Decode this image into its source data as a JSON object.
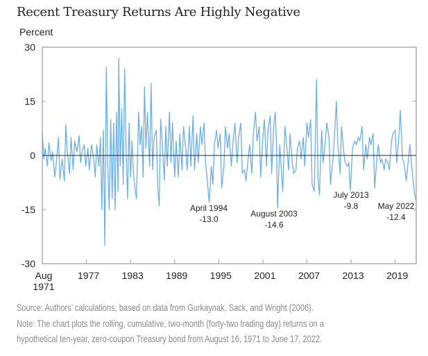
{
  "chart_data": {
    "type": "line",
    "title": "Recent Treasury Returns Are Highly Negative",
    "ylabel": "Percent",
    "xlabel": "",
    "ylim": [
      -30,
      30
    ],
    "yticks": [
      30,
      15,
      0,
      -15,
      -30
    ],
    "xlim": [
      1971.6,
      2022.46
    ],
    "xticks": [
      {
        "x": 1971.6,
        "label": [
          "Aug",
          "1971"
        ]
      },
      {
        "x": 1977.6,
        "label": [
          "1977"
        ]
      },
      {
        "x": 1983.6,
        "label": [
          "1983"
        ]
      },
      {
        "x": 1989.6,
        "label": [
          "1989"
        ]
      },
      {
        "x": 1995.6,
        "label": [
          "1995"
        ]
      },
      {
        "x": 2001.6,
        "label": [
          "2001"
        ]
      },
      {
        "x": 2007.6,
        "label": [
          "2007"
        ]
      },
      {
        "x": 2013.6,
        "label": [
          "2013"
        ]
      },
      {
        "x": 2019.6,
        "label": [
          "2019"
        ]
      }
    ],
    "grid": false,
    "zero_line": true,
    "series_color": "#6aafe6",
    "points": [
      [
        1971.6,
        6.5
      ],
      [
        1971.8,
        -1
      ],
      [
        1972.0,
        2
      ],
      [
        1972.3,
        -3
      ],
      [
        1972.5,
        3.5
      ],
      [
        1972.8,
        -1.5
      ],
      [
        1973.0,
        1
      ],
      [
        1973.3,
        -6
      ],
      [
        1973.5,
        -2
      ],
      [
        1973.8,
        5
      ],
      [
        1974.0,
        -6.5
      ],
      [
        1974.3,
        -1
      ],
      [
        1974.6,
        -7
      ],
      [
        1974.8,
        8.5
      ],
      [
        1975.0,
        1
      ],
      [
        1975.3,
        -5
      ],
      [
        1975.5,
        5
      ],
      [
        1975.8,
        -4
      ],
      [
        1976.0,
        4
      ],
      [
        1976.3,
        1
      ],
      [
        1976.6,
        5.5
      ],
      [
        1976.8,
        -2
      ],
      [
        1977.0,
        1
      ],
      [
        1977.3,
        3
      ],
      [
        1977.5,
        -3
      ],
      [
        1977.8,
        2
      ],
      [
        1978.0,
        -4
      ],
      [
        1978.3,
        3
      ],
      [
        1978.6,
        -1
      ],
      [
        1978.8,
        -6
      ],
      [
        1979.0,
        3
      ],
      [
        1979.3,
        -3
      ],
      [
        1979.5,
        5
      ],
      [
        1979.7,
        -15
      ],
      [
        1979.9,
        7
      ],
      [
        1980.1,
        -25
      ],
      [
        1980.3,
        24.5
      ],
      [
        1980.5,
        -2
      ],
      [
        1980.7,
        -15
      ],
      [
        1980.9,
        10
      ],
      [
        1981.1,
        -12
      ],
      [
        1981.3,
        9
      ],
      [
        1981.5,
        -15
      ],
      [
        1981.7,
        12
      ],
      [
        1981.9,
        -10
      ],
      [
        1982.0,
        27
      ],
      [
        1982.2,
        -3
      ],
      [
        1982.4,
        13
      ],
      [
        1982.6,
        -8
      ],
      [
        1982.8,
        24
      ],
      [
        1983.0,
        2
      ],
      [
        1983.2,
        -12
      ],
      [
        1983.4,
        9
      ],
      [
        1983.6,
        -6
      ],
      [
        1983.8,
        4
      ],
      [
        1984.0,
        -5
      ],
      [
        1984.2,
        -9
      ],
      [
        1984.4,
        -12
      ],
      [
        1984.7,
        12
      ],
      [
        1984.9,
        3
      ],
      [
        1985.1,
        8
      ],
      [
        1985.3,
        -6
      ],
      [
        1985.5,
        19
      ],
      [
        1985.7,
        2
      ],
      [
        1985.9,
        12
      ],
      [
        1986.2,
        -3
      ],
      [
        1986.4,
        20
      ],
      [
        1986.6,
        -4
      ],
      [
        1986.8,
        5
      ],
      [
        1987.1,
        7
      ],
      [
        1987.3,
        -9
      ],
      [
        1987.5,
        -14
      ],
      [
        1987.7,
        10
      ],
      [
        1987.9,
        4
      ],
      [
        1988.2,
        -7
      ],
      [
        1988.4,
        8
      ],
      [
        1988.6,
        -3
      ],
      [
        1988.9,
        12
      ],
      [
        1989.1,
        -2
      ],
      [
        1989.3,
        9
      ],
      [
        1989.6,
        -6
      ],
      [
        1989.8,
        4
      ],
      [
        1990.1,
        -6
      ],
      [
        1990.3,
        6
      ],
      [
        1990.6,
        -4
      ],
      [
        1990.8,
        8
      ],
      [
        1991.1,
        2
      ],
      [
        1991.3,
        -4
      ],
      [
        1991.6,
        8
      ],
      [
        1991.8,
        -3
      ],
      [
        1992.1,
        11
      ],
      [
        1992.3,
        -4
      ],
      [
        1992.6,
        6
      ],
      [
        1992.8,
        -2
      ],
      [
        1993.1,
        8
      ],
      [
        1993.3,
        3
      ],
      [
        1993.6,
        9
      ],
      [
        1993.8,
        -2
      ],
      [
        1994.0,
        -6
      ],
      [
        1994.3,
        -13
      ],
      [
        1994.6,
        -3
      ],
      [
        1994.8,
        -8
      ],
      [
        1995.0,
        3
      ],
      [
        1995.3,
        7
      ],
      [
        1995.5,
        2
      ],
      [
        1995.8,
        6
      ],
      [
        1996.0,
        -9
      ],
      [
        1996.3,
        -3
      ],
      [
        1996.5,
        8
      ],
      [
        1996.8,
        2
      ],
      [
        1997.0,
        6
      ],
      [
        1997.3,
        -3
      ],
      [
        1997.6,
        5
      ],
      [
        1997.8,
        9
      ],
      [
        1998.1,
        -2
      ],
      [
        1998.3,
        5
      ],
      [
        1998.6,
        9
      ],
      [
        1998.8,
        -5
      ],
      [
        1999.1,
        -4
      ],
      [
        1999.3,
        -7
      ],
      [
        1999.6,
        -1
      ],
      [
        1999.8,
        3
      ],
      [
        2000.1,
        -5
      ],
      [
        2000.3,
        6
      ],
      [
        2000.6,
        12
      ],
      [
        2000.8,
        4
      ],
      [
        2001.1,
        8
      ],
      [
        2001.3,
        -6
      ],
      [
        2001.6,
        5
      ],
      [
        2001.8,
        10
      ],
      [
        2002.1,
        -3
      ],
      [
        2002.3,
        7
      ],
      [
        2002.6,
        11
      ],
      [
        2002.8,
        -5
      ],
      [
        2003.1,
        9
      ],
      [
        2003.3,
        12
      ],
      [
        2003.45,
        4
      ],
      [
        2003.6,
        -14.6
      ],
      [
        2003.9,
        3
      ],
      [
        2004.3,
        -10
      ],
      [
        2004.6,
        8
      ],
      [
        2004.8,
        4
      ],
      [
        2005.1,
        -4
      ],
      [
        2005.3,
        6
      ],
      [
        2005.6,
        -2
      ],
      [
        2005.8,
        -5
      ],
      [
        2006.1,
        -4
      ],
      [
        2006.3,
        2
      ],
      [
        2006.6,
        4
      ],
      [
        2006.8,
        -1
      ],
      [
        2007.1,
        5
      ],
      [
        2007.3,
        -3
      ],
      [
        2007.6,
        9
      ],
      [
        2007.8,
        5
      ],
      [
        2008.1,
        10
      ],
      [
        2008.3,
        -8
      ],
      [
        2008.6,
        -10
      ],
      [
        2008.9,
        21
      ],
      [
        2009.1,
        -6
      ],
      [
        2009.3,
        -11
      ],
      [
        2009.6,
        7
      ],
      [
        2009.8,
        -2
      ],
      [
        2010.1,
        4
      ],
      [
        2010.3,
        9
      ],
      [
        2010.6,
        5
      ],
      [
        2010.8,
        -8
      ],
      [
        2011.1,
        -2
      ],
      [
        2011.3,
        4
      ],
      [
        2011.6,
        15
      ],
      [
        2011.8,
        3
      ],
      [
        2012.1,
        -5
      ],
      [
        2012.3,
        8
      ],
      [
        2012.6,
        1
      ],
      [
        2012.8,
        -2
      ],
      [
        2013.1,
        -3
      ],
      [
        2013.3,
        -2
      ],
      [
        2013.5,
        -9.8
      ],
      [
        2013.8,
        2
      ],
      [
        2014.1,
        4
      ],
      [
        2014.3,
        3
      ],
      [
        2014.6,
        5
      ],
      [
        2014.8,
        4
      ],
      [
        2015.1,
        8
      ],
      [
        2015.3,
        -4
      ],
      [
        2015.6,
        3
      ],
      [
        2015.8,
        -1
      ],
      [
        2016.1,
        5
      ],
      [
        2016.3,
        3
      ],
      [
        2016.6,
        6
      ],
      [
        2016.8,
        -9
      ],
      [
        2017.1,
        -1
      ],
      [
        2017.3,
        3
      ],
      [
        2017.6,
        -2
      ],
      [
        2017.8,
        -1
      ],
      [
        2018.1,
        -4
      ],
      [
        2018.3,
        -1
      ],
      [
        2018.6,
        -2
      ],
      [
        2018.8,
        -4
      ],
      [
        2019.1,
        4
      ],
      [
        2019.3,
        6
      ],
      [
        2019.6,
        7
      ],
      [
        2019.8,
        -2
      ],
      [
        2020.1,
        5
      ],
      [
        2020.3,
        12.5
      ],
      [
        2020.6,
        -1
      ],
      [
        2020.8,
        -2
      ],
      [
        2021.1,
        -7
      ],
      [
        2021.3,
        -3
      ],
      [
        2021.6,
        3
      ],
      [
        2021.8,
        -2
      ],
      [
        2022.0,
        -6
      ],
      [
        2022.2,
        -10
      ],
      [
        2022.4,
        -12.4
      ]
    ],
    "annotations": [
      {
        "label": "April 1994",
        "value": "-13.0"
      },
      {
        "label": "August 2003",
        "value": "-14.6"
      },
      {
        "label": "July 2013",
        "value": "-9.8"
      },
      {
        "label": "May 2022",
        "value": "-12.4"
      }
    ]
  },
  "notes": {
    "source": "Source: Authors’ calculations, based on data from Gurkaynak, Sack, and Wright (2006).",
    "note_line1": "Note: The chart plots the rolling, cumulative, two-month (forty-two trading day) returns on a",
    "note_line2": "hypothetical ten-year, zero-coupon Treasury bond from August 16, 1971 to June 17, 2022."
  }
}
